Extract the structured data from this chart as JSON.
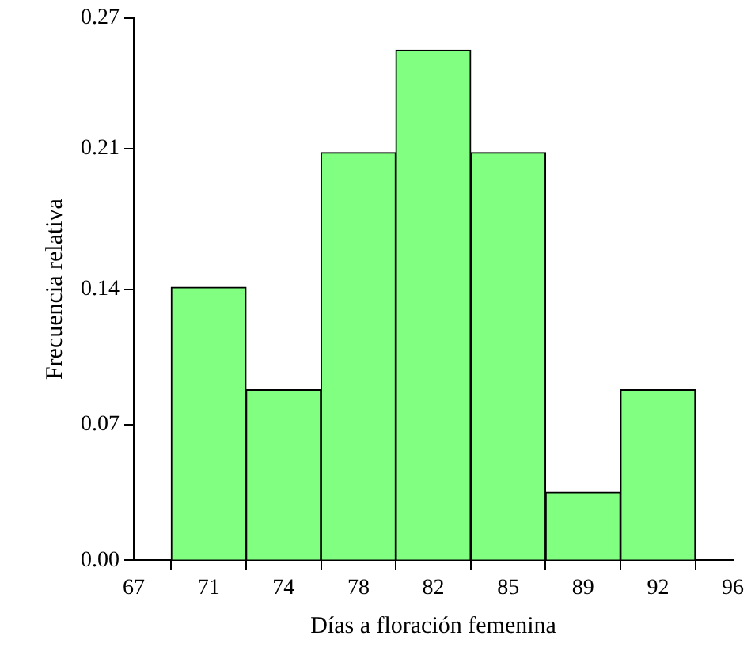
{
  "chart_data": {
    "type": "histogram",
    "xlabel": "Días a floración femenina",
    "ylabel": "Frecuencia relativa",
    "bins": [
      68.81,
      72.44,
      76.06,
      79.69,
      83.31,
      86.94,
      90.56,
      94.19
    ],
    "values": [
      0.136,
      0.085,
      0.203,
      0.254,
      0.203,
      0.034,
      0.085
    ],
    "color": "#80ff80",
    "xlim": [
      67,
      96
    ],
    "xticks": [
      67,
      {
        "value": 70.625,
        "label": "71"
      },
      {
        "value": 74.25,
        "label": "74"
      },
      {
        "value": 77.875,
        "label": "78"
      },
      {
        "value": 81.5,
        "label": "82"
      },
      {
        "value": 85.125,
        "label": "85"
      },
      {
        "value": 88.75,
        "label": "89"
      },
      {
        "value": 92.375,
        "label": "92"
      },
      96
    ],
    "ylim": [
      0,
      0.27
    ],
    "yticks": [
      {
        "value": 0,
        "label": "0.00"
      },
      {
        "value": 0.0675,
        "label": "0.07"
      },
      {
        "value": 0.135,
        "label": "0.14"
      },
      {
        "value": 0.205,
        "label": "0.21"
      },
      {
        "value": 0.27,
        "label": "0.27"
      }
    ],
    "grid": false
  }
}
